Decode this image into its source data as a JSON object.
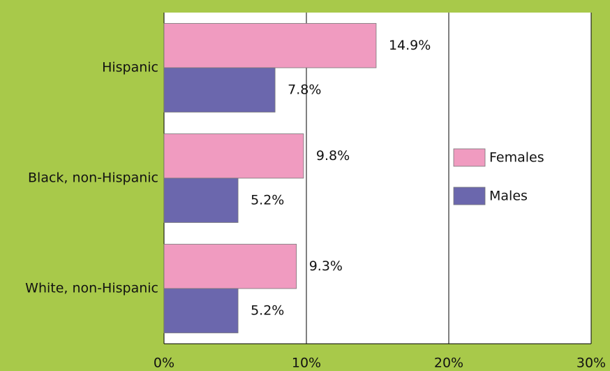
{
  "chart_data": {
    "type": "bar",
    "orientation": "horizontal",
    "categories": [
      "Hispanic",
      "Black, non-Hispanic",
      "White, non-Hispanic"
    ],
    "series": [
      {
        "name": "Females",
        "color": "#f09bc0",
        "values": [
          14.9,
          9.8,
          9.3
        ],
        "value_labels": [
          "14.9%",
          "9.8%",
          "9.3%"
        ]
      },
      {
        "name": "Males",
        "color": "#6b67ad",
        "values": [
          7.8,
          5.2,
          5.2
        ],
        "value_labels": [
          "7.8%",
          "5.2%",
          "5.2%"
        ]
      }
    ],
    "xlim": [
      0,
      30
    ],
    "xticks": [
      {
        "value": 0,
        "label": "0%"
      },
      {
        "value": 10,
        "label": "10%"
      },
      {
        "value": 20,
        "label": "20%"
      },
      {
        "value": 30,
        "label": "30%"
      }
    ],
    "grid": true,
    "legend": "right"
  }
}
